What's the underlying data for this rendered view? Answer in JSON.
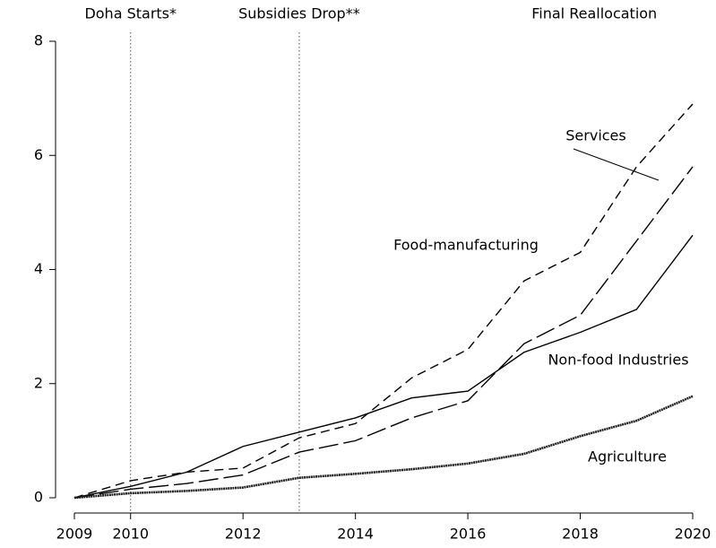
{
  "chart_data": {
    "type": "line",
    "x": [
      2009,
      2010,
      2011,
      2012,
      2013,
      2014,
      2015,
      2016,
      2017,
      2018,
      2019,
      2020
    ],
    "series": [
      {
        "name": "Food-manufacturing",
        "color": "#000000",
        "dash": "short",
        "values": [
          0,
          0.3,
          0.45,
          0.52,
          1.05,
          1.3,
          2.1,
          2.6,
          3.8,
          4.3,
          5.8,
          6.9
        ]
      },
      {
        "name": "Services",
        "color": "#000000",
        "dash": "long",
        "values": [
          0,
          0.15,
          0.25,
          0.4,
          0.8,
          1.0,
          1.4,
          1.7,
          2.7,
          3.2,
          4.5,
          5.8
        ]
      },
      {
        "name": "Non-food Industries",
        "color": "#000000",
        "dash": "solid",
        "values": [
          0,
          0.2,
          0.45,
          0.9,
          1.15,
          1.4,
          1.75,
          1.87,
          2.55,
          2.9,
          3.3,
          4.6
        ]
      },
      {
        "name": "Agriculture",
        "color": "#222222",
        "dash": "thick",
        "values": [
          0,
          0.08,
          0.12,
          0.18,
          0.35,
          0.42,
          0.5,
          0.6,
          0.77,
          1.08,
          1.35,
          1.78
        ]
      }
    ],
    "events": [
      {
        "label": "Doha Starts*",
        "x": 2010,
        "line": true
      },
      {
        "label": "Subsidies Drop**",
        "x": 2013,
        "line": true
      },
      {
        "label": "Final Reallocation",
        "x": 2018.25,
        "line": false
      }
    ],
    "xlim": [
      2009,
      2020
    ],
    "xticks": [
      2009,
      2010,
      2012,
      2014,
      2016,
      2018,
      2020
    ],
    "ylim": [
      0,
      8
    ],
    "yticks": [
      0,
      2,
      4,
      6,
      8
    ],
    "grid": false
  }
}
